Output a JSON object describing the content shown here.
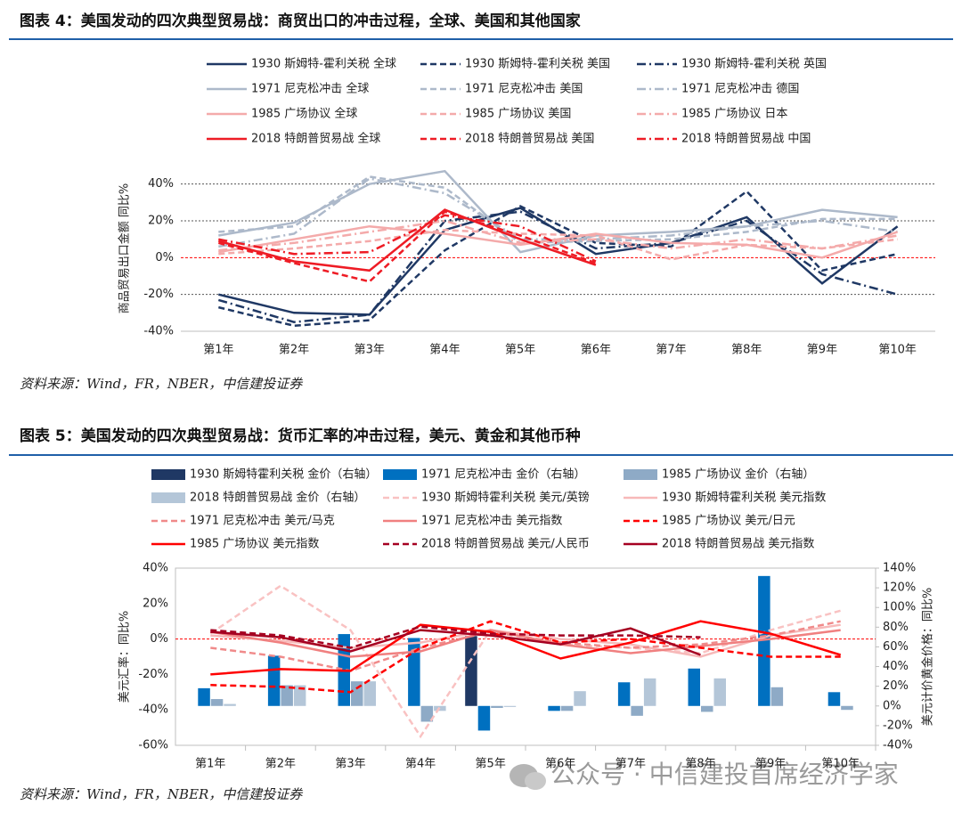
{
  "watermark": "公众号 · 中信建投首席经济学家",
  "chart_data": [
    {
      "type": "line",
      "title": "图表 4：美国发动的四次典型贸易战：商贸出口的冲击过程，全球、美国和其他国家",
      "source": "资料来源：Wind，FR，NBER，中信建投证券",
      "ylabel": "商品贸易出口金额 同比%",
      "categories": [
        "第1年",
        "第2年",
        "第3年",
        "第4年",
        "第5年",
        "第6年",
        "第7年",
        "第8年",
        "第9年",
        "第10年"
      ],
      "ylim": [
        -40,
        50
      ],
      "yticks": [
        {
          "value": -40,
          "label": "-40%"
        },
        {
          "value": -20,
          "label": "-20%"
        },
        {
          "value": 0,
          "label": "0%"
        },
        {
          "value": 20,
          "label": "20%"
        },
        {
          "value": 40,
          "label": "40%"
        }
      ],
      "grid": true,
      "series": [
        {
          "name": "1930 斯姆特-霍利关税 全球",
          "color": "#1f3864",
          "dash": "solid",
          "values": [
            -20,
            -30,
            -31,
            15,
            27,
            2,
            8,
            22,
            -14,
            17
          ]
        },
        {
          "name": "1930 斯姆特-霍利关税 美国",
          "color": "#1f3864",
          "dash": "dashed",
          "values": [
            -27,
            -37,
            -34,
            4,
            28,
            8,
            6,
            36,
            -7,
            2
          ]
        },
        {
          "name": "1930 斯姆特-霍利关税 英国",
          "color": "#1f3864",
          "dash": "dashdot",
          "values": [
            -23,
            -35,
            -31,
            20,
            25,
            5,
            8,
            20,
            -9,
            -20
          ]
        },
        {
          "name": "1971 尼克松冲击 全球",
          "color": "#adb9ca",
          "dash": "solid",
          "values": [
            12,
            19,
            40,
            47,
            3,
            12,
            14,
            17,
            26,
            22
          ]
        },
        {
          "name": "1971 尼克松冲击 美国",
          "color": "#adb9ca",
          "dash": "dashed",
          "values": [
            14,
            17,
            44,
            38,
            8,
            9,
            10,
            14,
            21,
            21
          ]
        },
        {
          "name": "1971 尼克松冲击 德国",
          "color": "#adb9ca",
          "dash": "dashdot",
          "values": [
            6,
            13,
            43,
            35,
            10,
            10,
            12,
            17,
            20,
            14
          ]
        },
        {
          "name": "1985 广场协议 全球",
          "color": "#f4aaaa",
          "dash": "solid",
          "values": [
            3,
            10,
            17,
            13,
            7,
            13,
            8,
            7,
            0,
            14
          ]
        },
        {
          "name": "1985 广场协议 美国",
          "color": "#f4aaaa",
          "dash": "dashed",
          "values": [
            2,
            5,
            9,
            15,
            13,
            12,
            -1,
            7,
            5,
            10
          ]
        },
        {
          "name": "1985 广场协议 日本",
          "color": "#f4aaaa",
          "dash": "dashdot",
          "values": [
            4,
            8,
            14,
            20,
            8,
            10,
            5,
            10,
            5,
            12
          ]
        },
        {
          "name": "2018 特朗普贸易战 全球",
          "color": "#ee1c25",
          "dash": "solid",
          "values": [
            9,
            -2,
            -7,
            26,
            10,
            -4,
            null,
            null,
            null,
            null
          ]
        },
        {
          "name": "2018 特朗普贸易战 美国",
          "color": "#ee1c25",
          "dash": "dashed",
          "values": [
            8,
            -3,
            -13,
            25,
            12,
            -3,
            null,
            null,
            null,
            null
          ]
        },
        {
          "name": "2018 特朗普贸易战 中国",
          "color": "#ee1c25",
          "dash": "dashdot",
          "values": [
            10,
            2,
            3,
            23,
            17,
            -2,
            null,
            null,
            null,
            null
          ]
        }
      ]
    },
    {
      "type": "combo",
      "title": "图表 5：美国发动的四次典型贸易战：货币汇率的冲击过程，美元、黄金和其他币种",
      "source": "资料来源：Wind，FR，NBER，中信建投证券",
      "ylabel": "美元汇率：同比%",
      "y2label": "美元计价黄金价格：同比%",
      "categories": [
        "第1年",
        "第2年",
        "第3年",
        "第4年",
        "第5年",
        "第6年",
        "第7年",
        "第8年",
        "第9年",
        "第10年"
      ],
      "ylim": [
        -60,
        40
      ],
      "yticks": [
        {
          "value": -60,
          "label": "-60%"
        },
        {
          "value": -40,
          "label": "-40%"
        },
        {
          "value": -20,
          "label": "-20%"
        },
        {
          "value": 0,
          "label": "0%"
        },
        {
          "value": 20,
          "label": "20%"
        },
        {
          "value": 40,
          "label": "40%"
        }
      ],
      "y2lim": [
        -40,
        140
      ],
      "y2ticks": [
        {
          "value": -40,
          "label": "-40%"
        },
        {
          "value": -20,
          "label": "-20%"
        },
        {
          "value": 0,
          "label": "0%"
        },
        {
          "value": 20,
          "label": "20%"
        },
        {
          "value": 40,
          "label": "40%"
        },
        {
          "value": 60,
          "label": "60%"
        },
        {
          "value": 80,
          "label": "80%"
        },
        {
          "value": 100,
          "label": "100%"
        },
        {
          "value": 120,
          "label": "120%"
        },
        {
          "value": 140,
          "label": "140%"
        }
      ],
      "grid": false,
      "frame": true,
      "series": [
        {
          "name": "1930 斯姆特霍利关税 金价（右轴）",
          "type": "bar",
          "axis": "y2",
          "color": "#1f3864",
          "values": [
            null,
            null,
            null,
            null,
            71,
            null,
            null,
            null,
            null,
            null
          ]
        },
        {
          "name": "1971 尼克松冲击 金价（右轴）",
          "type": "bar",
          "axis": "y2",
          "color": "#0070c0",
          "values": [
            18,
            51,
            73,
            69,
            -25,
            -5,
            24,
            38,
            132,
            14
          ]
        },
        {
          "name": "1985 广场协议 金价（右轴）",
          "type": "bar",
          "axis": "y2",
          "color": "#8eaac6",
          "values": [
            7,
            21,
            25,
            -16,
            -2,
            -5,
            -10,
            -6,
            19,
            -4
          ]
        },
        {
          "name": "2018 特朗普贸易战 金价（右轴）",
          "type": "bar",
          "axis": "y2",
          "color": "#b4c6d8",
          "values": [
            2,
            21,
            25,
            -5,
            -1,
            15,
            28,
            28,
            null,
            null
          ]
        },
        {
          "name": "1930 斯姆特霍利关税 美元/英镑",
          "type": "line",
          "color": "#f9c2c2",
          "dash": "dashed",
          "values": [
            3,
            30,
            5,
            -55,
            5,
            -3,
            -5,
            -8,
            5,
            16
          ]
        },
        {
          "name": "1930 斯姆特霍利关税 美元指数",
          "type": "line",
          "color": "#f7b9b9",
          "dash": "solid",
          "values": [
            2,
            -1,
            -5,
            -2,
            5,
            0,
            -3,
            -10,
            2,
            8
          ]
        },
        {
          "name": "1971 尼克松冲击 美元/马克",
          "type": "line",
          "color": "#f08a8a",
          "dash": "dashed",
          "values": [
            -5,
            -10,
            -18,
            -5,
            4,
            -2,
            -5,
            -3,
            2,
            10
          ]
        },
        {
          "name": "1971 尼克松冲击 美元指数",
          "type": "line",
          "color": "#f08080",
          "dash": "solid",
          "values": [
            4,
            -2,
            -10,
            -7,
            5,
            -3,
            -8,
            -4,
            0,
            5
          ]
        },
        {
          "name": "1985 广场协议 美元/日元",
          "type": "line",
          "color": "#ff0000",
          "dash": "dashed",
          "values": [
            -26,
            -27,
            -30,
            -5,
            10,
            -2,
            0,
            -5,
            -10,
            -10
          ]
        },
        {
          "name": "1985 广场协议 美元指数",
          "type": "line",
          "color": "#ff0000",
          "dash": "solid",
          "values": [
            -20,
            -17,
            -18,
            8,
            4,
            -11,
            -2,
            10,
            3,
            -9
          ]
        },
        {
          "name": "2018 特朗普贸易战 美元/人民币",
          "type": "line",
          "color": "#a50021",
          "dash": "dashed",
          "values": [
            5,
            2,
            -5,
            7,
            3,
            2,
            2,
            1,
            null,
            null
          ]
        },
        {
          "name": "2018 特朗普贸易战 美元指数",
          "type": "line",
          "color": "#a50021",
          "dash": "solid",
          "values": [
            4,
            1,
            -7,
            5,
            2,
            -3,
            6,
            -9,
            null,
            null
          ]
        }
      ]
    }
  ]
}
